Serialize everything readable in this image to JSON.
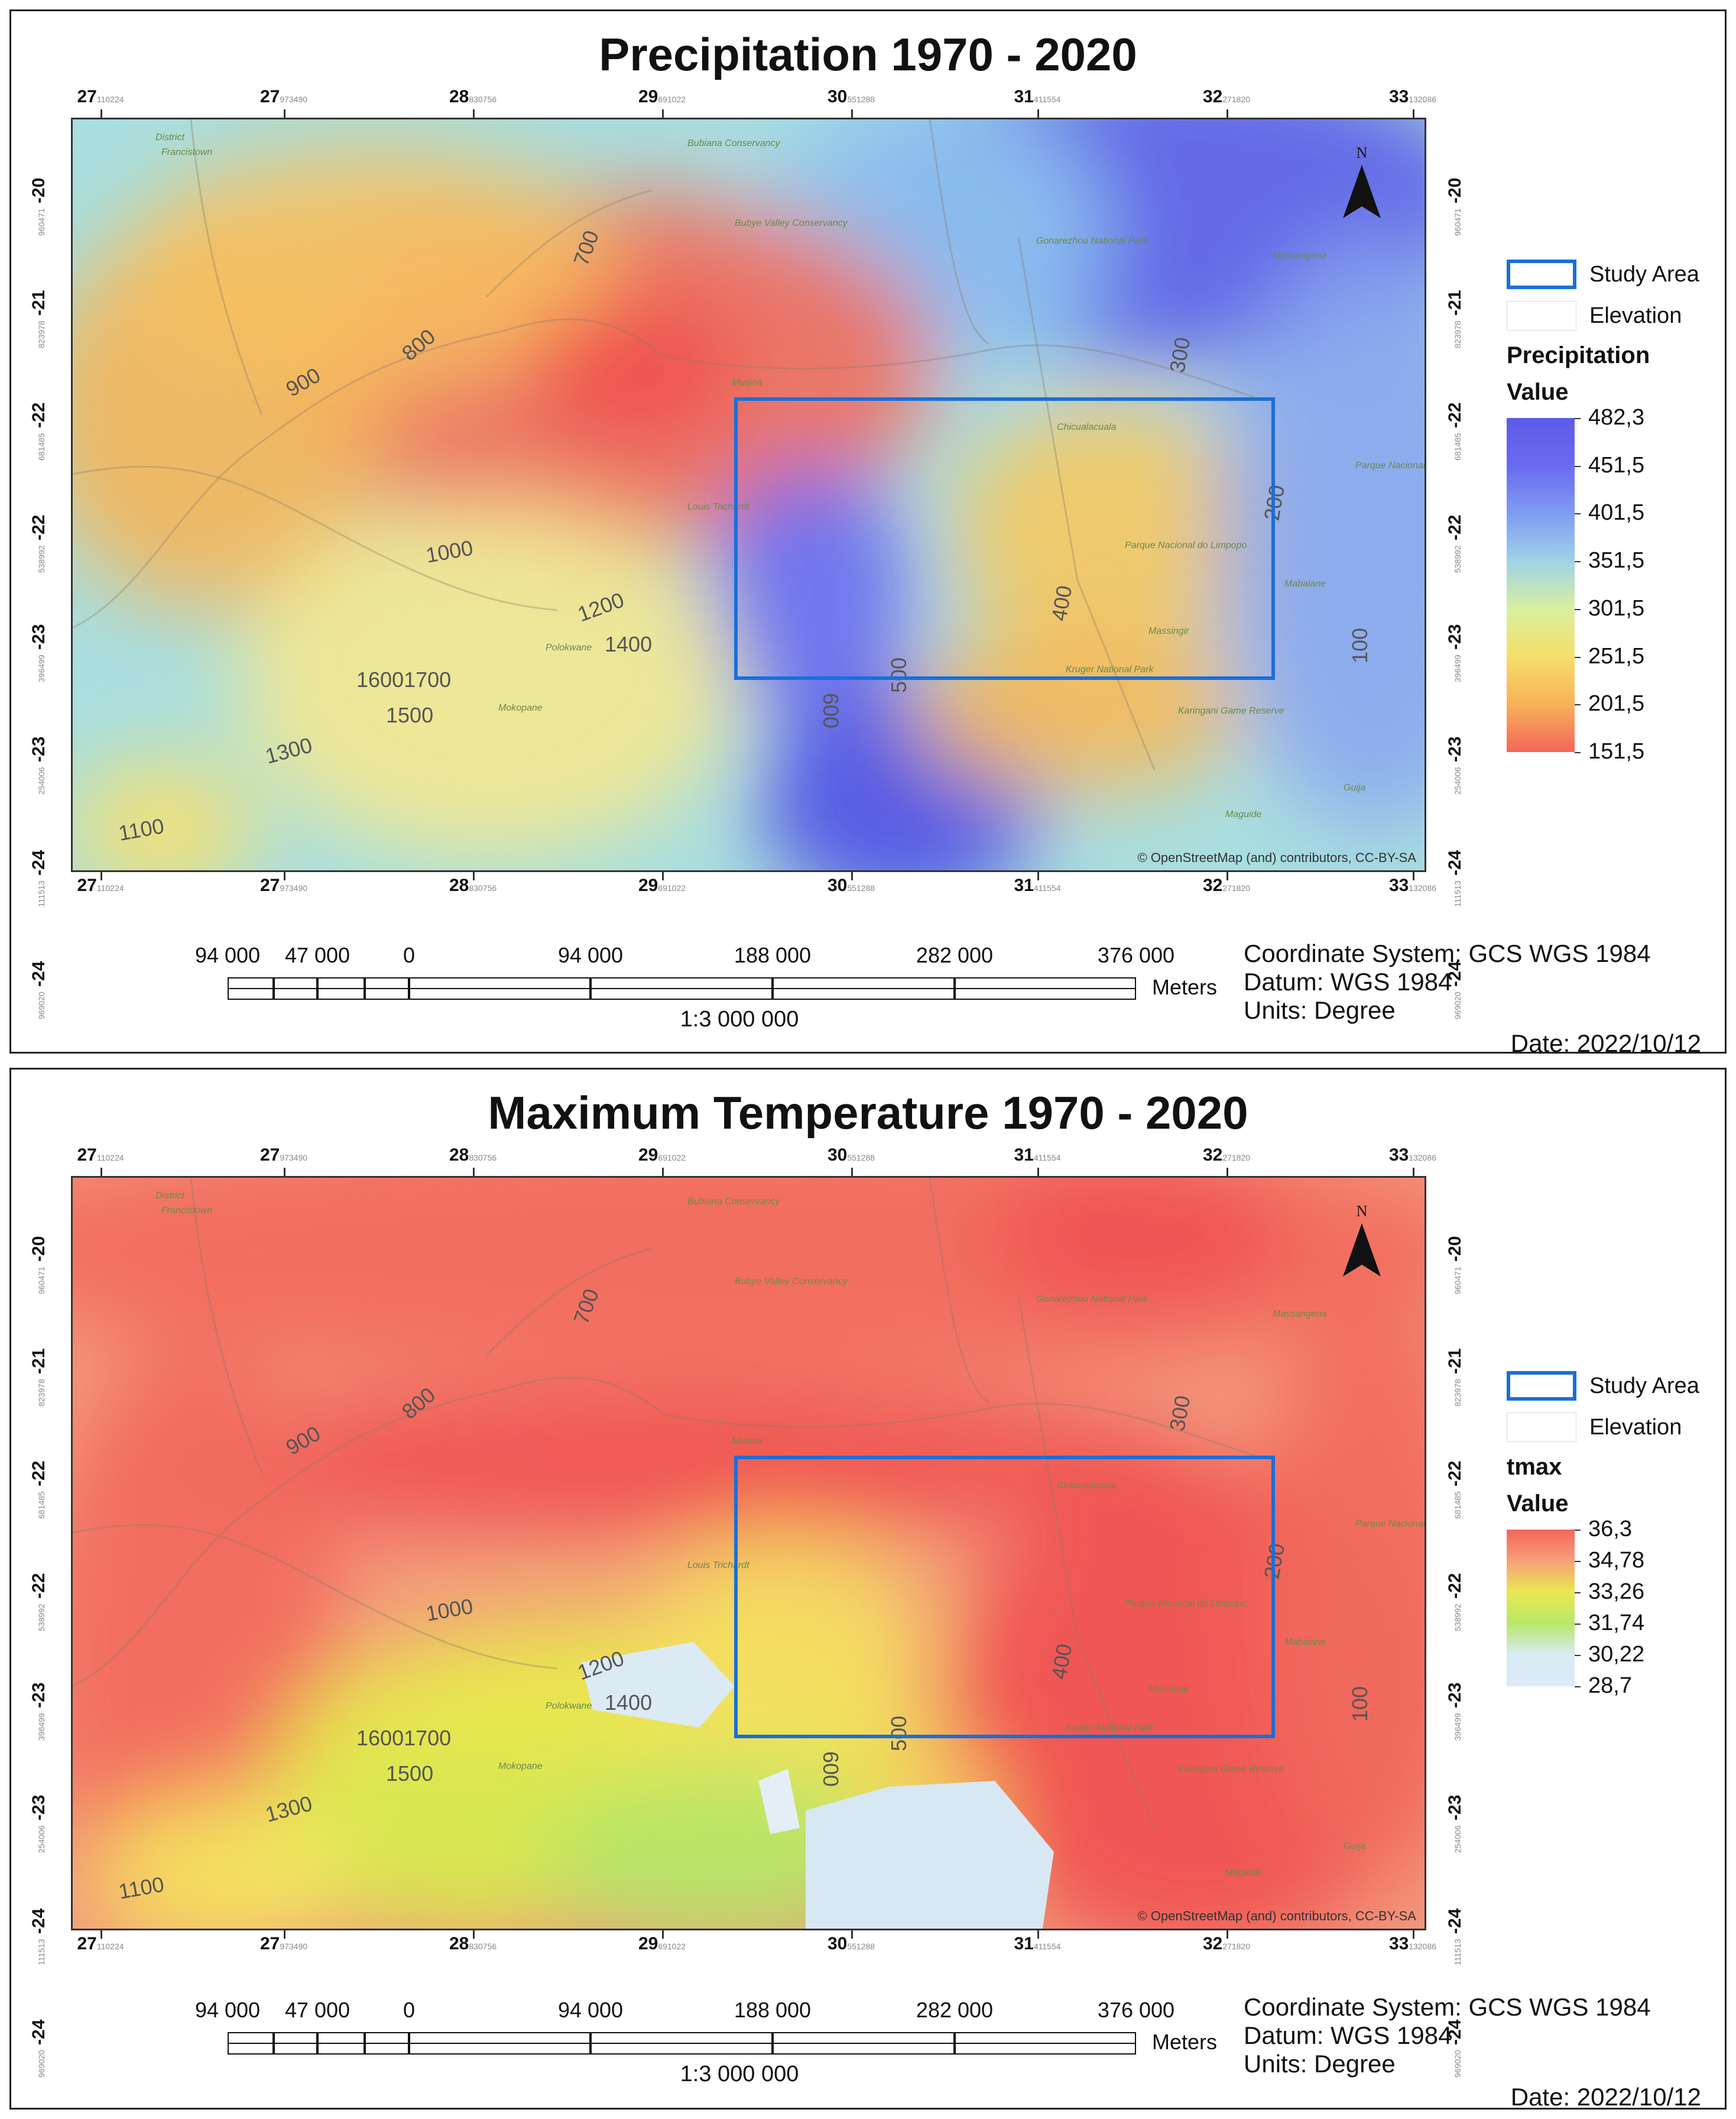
{
  "panels": [
    {
      "title": "Precipitation 1970 - 2020",
      "lon_ticks": [
        {
          "deg": "27",
          "sub": "110224"
        },
        {
          "deg": "27",
          "sub": "973490"
        },
        {
          "deg": "28",
          "sub": "830756"
        },
        {
          "deg": "29",
          "sub": "691022"
        },
        {
          "deg": "30",
          "sub": "551288"
        },
        {
          "deg": "31",
          "sub": "411554"
        },
        {
          "deg": "32",
          "sub": "271820"
        },
        {
          "deg": "33",
          "sub": "132086"
        }
      ],
      "lat_ticks": [
        {
          "deg": "-20",
          "sub": "960471"
        },
        {
          "deg": "-21",
          "sub": "823978"
        },
        {
          "deg": "-22",
          "sub": "681485"
        },
        {
          "deg": "-22",
          "sub": "538992"
        },
        {
          "deg": "-23",
          "sub": "396499"
        },
        {
          "deg": "-23",
          "sub": "254006"
        },
        {
          "deg": "-24",
          "sub": "111513"
        },
        {
          "deg": "-24",
          "sub": "969020"
        }
      ],
      "contours": [
        "700",
        "800",
        "900",
        "1000",
        "1200",
        "1400",
        "16001700",
        "1500",
        "1300",
        "1100",
        "300",
        "200",
        "400",
        "600",
        "500",
        "100"
      ],
      "basemap_labels": [
        "District",
        "Francistown",
        "Bubiana Conservancy",
        "Bubye Valley Conservancy",
        "Gonarezhou National Park",
        "Massangena",
        "Musina",
        "Louis Trichardt",
        "Chicualacuala",
        "Parque Nacional de Banhine",
        "Parque Nacional do Limpopo",
        "Mabalane",
        "Kruger National Park",
        "Massingir",
        "Karingani Game Reserve",
        "Guija",
        "Polokwane",
        "Mokopane",
        "Maguide"
      ],
      "attribution": "© OpenStreetMap (and) contributors, CC-BY-SA",
      "legend": {
        "study_area": "Study Area",
        "elevation": "Elevation",
        "layer_name": "Precipitation",
        "value_label": "Value",
        "ramp_labels": [
          "482,3",
          "451,5",
          "401,5",
          "351,5",
          "301,5",
          "251,5",
          "201,5",
          "151,5"
        ],
        "ramp_colors": [
          "#5b5be8",
          "#6a6af0",
          "#7f9cf2",
          "#9fd2e6",
          "#d8f0a0",
          "#f5df6a",
          "#f7b25a",
          "#f4665a"
        ]
      },
      "scalebar": {
        "labels": [
          "94 000",
          "47 000",
          "0",
          "94 000",
          "188 000",
          "282 000",
          "376 000"
        ],
        "unit": "Meters",
        "scale": "1:3 000 000"
      },
      "meta": {
        "coord": "Coordinate System: GCS WGS 1984",
        "datum": "Datum: WGS 1984",
        "units": "Units: Degree",
        "date": "Date: 2022/10/12"
      },
      "north": "N"
    },
    {
      "title": "Maximum Temperature 1970 - 2020",
      "lon_ticks": [
        {
          "deg": "27",
          "sub": "110224"
        },
        {
          "deg": "27",
          "sub": "973490"
        },
        {
          "deg": "28",
          "sub": "830756"
        },
        {
          "deg": "29",
          "sub": "691022"
        },
        {
          "deg": "30",
          "sub": "551288"
        },
        {
          "deg": "31",
          "sub": "411554"
        },
        {
          "deg": "32",
          "sub": "271820"
        },
        {
          "deg": "33",
          "sub": "132086"
        }
      ],
      "lat_ticks": [
        {
          "deg": "-20",
          "sub": "960471"
        },
        {
          "deg": "-21",
          "sub": "823978"
        },
        {
          "deg": "-22",
          "sub": "681485"
        },
        {
          "deg": "-22",
          "sub": "538992"
        },
        {
          "deg": "-23",
          "sub": "396499"
        },
        {
          "deg": "-23",
          "sub": "254006"
        },
        {
          "deg": "-24",
          "sub": "111513"
        },
        {
          "deg": "-24",
          "sub": "969020"
        }
      ],
      "contours": [
        "700",
        "800",
        "900",
        "1000",
        "1200",
        "1400",
        "16001700",
        "1500",
        "1300",
        "1100",
        "300",
        "200",
        "400",
        "600",
        "500",
        "100"
      ],
      "basemap_labels": [
        "District",
        "Francistown",
        "Bubiana Conservancy",
        "Bubye Valley Conservancy",
        "Gonarezhou National Park",
        "Massangena",
        "Musina",
        "Louis Trichardt",
        "Chicualacuala",
        "Parque Nacional de Banhine",
        "Parque Nacional do Limpopo",
        "Mabalane",
        "Kruger National Park",
        "Massingir",
        "Karingani Game Reserve",
        "Guija",
        "Polokwane",
        "Mokopane",
        "Maguide"
      ],
      "attribution": "© OpenStreetMap (and) contributors, CC-BY-SA",
      "legend": {
        "study_area": "Study Area",
        "elevation": "Elevation",
        "layer_name": "tmax",
        "value_label": "Value",
        "ramp_labels": [
          "36,3",
          "34,78",
          "33,26",
          "31,74",
          "30,22",
          "28,7"
        ],
        "ramp_colors": [
          "#f4665a",
          "#f7a07a",
          "#e8e850",
          "#b8e86a",
          "#d8ecf4",
          "#dceaf6"
        ]
      },
      "scalebar": {
        "labels": [
          "94 000",
          "47 000",
          "0",
          "94 000",
          "188 000",
          "282 000",
          "376 000"
        ],
        "unit": "Meters",
        "scale": "1:3 000 000"
      },
      "meta": {
        "coord": "Coordinate System: GCS WGS 1984",
        "datum": "Datum: WGS 1984",
        "units": "Units: Degree",
        "date": "Date: 2022/10/12"
      },
      "north": "N"
    }
  ],
  "colors": {
    "study_area": "#1a6fd8",
    "frame": "#333333"
  }
}
